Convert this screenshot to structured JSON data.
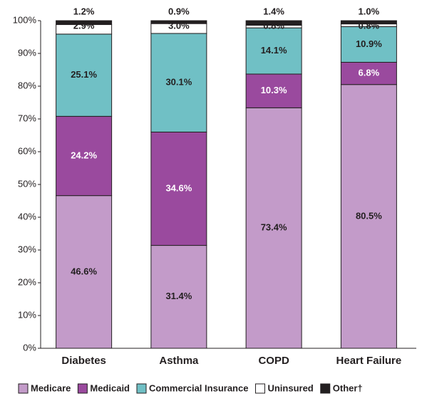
{
  "chart_data": {
    "type": "stacked_bar",
    "categories": [
      "Diabetes",
      "Asthma",
      "COPD",
      "Heart Failure"
    ],
    "series": [
      {
        "name": "Medicare",
        "color": "#c39bc9",
        "values": [
          46.6,
          31.4,
          73.4,
          80.5
        ],
        "value_labels": [
          "46.6%",
          "31.4%",
          "73.4%",
          "80.5%"
        ]
      },
      {
        "name": "Medicaid",
        "color": "#9a4a9e",
        "values": [
          24.2,
          34.6,
          10.3,
          6.8
        ],
        "value_labels": [
          "24.2%",
          "34.6%",
          "10.3%",
          "6.8%"
        ]
      },
      {
        "name": "Commercial Insurance",
        "color": "#70c0c5",
        "values": [
          25.1,
          30.1,
          14.1,
          10.9
        ],
        "value_labels": [
          "25.1%",
          "30.1%",
          "14.1%",
          "10.9%"
        ]
      },
      {
        "name": "Uninsured",
        "color": "#ffffff",
        "values": [
          2.9,
          3.0,
          0.8,
          0.8
        ],
        "value_labels": [
          "2.9%",
          "3.0%",
          "0.8%",
          "0.8%"
        ]
      },
      {
        "name": "Other†",
        "color": "#231f20",
        "values": [
          1.2,
          0.9,
          1.4,
          1.0
        ],
        "value_labels": [
          "1.2%",
          "0.9%",
          "1.4%",
          "1.0%"
        ]
      }
    ],
    "ylim": [
      0,
      100
    ],
    "yticks": [
      {
        "value": 0,
        "label": "0%"
      },
      {
        "value": 10,
        "label": "10%"
      },
      {
        "value": 20,
        "label": "20%"
      },
      {
        "value": 30,
        "label": "30%"
      },
      {
        "value": 40,
        "label": "40%"
      },
      {
        "value": 50,
        "label": "50%"
      },
      {
        "value": 60,
        "label": "60%"
      },
      {
        "value": 70,
        "label": "70%"
      },
      {
        "value": 80,
        "label": "80%"
      },
      {
        "value": 90,
        "label": "90%"
      },
      {
        "value": 100,
        "label": "100%"
      }
    ],
    "legend": "bottom"
  }
}
